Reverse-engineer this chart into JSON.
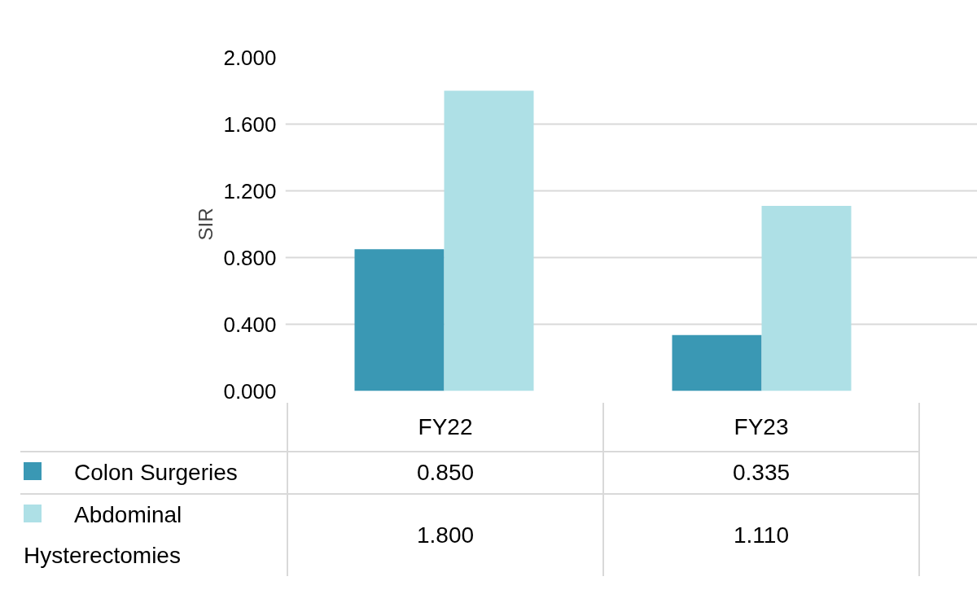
{
  "chart_data": {
    "type": "bar",
    "ylabel": "SIR",
    "categories": [
      "FY22",
      "FY23"
    ],
    "series": [
      {
        "name": "Colon Surgeries",
        "color": "#3a98b4",
        "values": [
          0.85,
          0.335
        ],
        "value_labels": [
          "0.850",
          "0.335"
        ]
      },
      {
        "name": "Abdominal Hysterectomies",
        "color": "#aee0e6",
        "values": [
          1.8,
          1.11
        ],
        "value_labels": [
          "1.800",
          "1.110"
        ]
      }
    ],
    "ylim": [
      0,
      2.0
    ],
    "yticks": [
      {
        "value": 0,
        "label": "0.000"
      },
      {
        "value": 0.4,
        "label": "0.400"
      },
      {
        "value": 0.8,
        "label": "0.800"
      },
      {
        "value": 1.2,
        "label": "1.200"
      },
      {
        "value": 1.6,
        "label": "1.600"
      },
      {
        "value": 2.0,
        "label": "2.000"
      }
    ],
    "grid": "y",
    "legend": "bottom"
  }
}
